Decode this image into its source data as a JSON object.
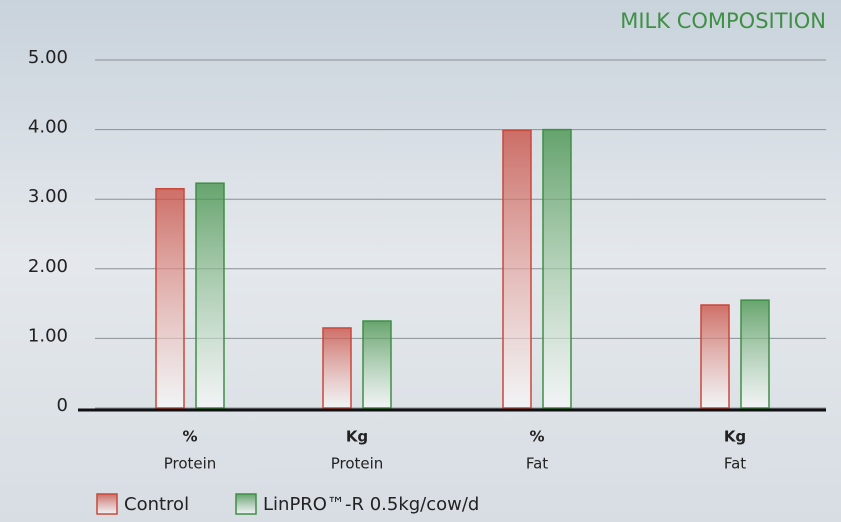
{
  "chart_data": {
    "type": "bar",
    "title": "MILK COMPOSITION",
    "categories": [
      [
        "%",
        "Protein"
      ],
      [
        "Kg",
        "Protein"
      ],
      [
        "%",
        "Fat"
      ],
      [
        "Kg",
        "Fat"
      ]
    ],
    "series": [
      {
        "name": "Control",
        "color": "#c8483c",
        "values": [
          3.15,
          1.15,
          3.99,
          1.48
        ]
      },
      {
        "name": "LinPRO™-R 0.5kg/cow/d",
        "color": "#3f8f45",
        "values": [
          3.23,
          1.25,
          4.0,
          1.55
        ]
      }
    ],
    "ylim": [
      0,
      5
    ],
    "yticks": [
      0,
      {
        "value": 1,
        "label": "1.00"
      },
      {
        "value": 2,
        "label": "2.00"
      },
      {
        "value": 3,
        "label": "3.00"
      },
      {
        "value": 4,
        "label": "4.00"
      },
      {
        "value": 5,
        "label": "5.00"
      }
    ],
    "grid": true
  }
}
